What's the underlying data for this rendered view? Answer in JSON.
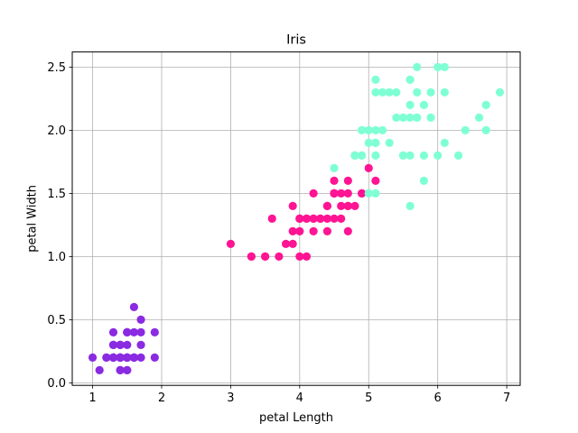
{
  "chart_data": {
    "type": "scatter",
    "title": "Iris",
    "xlabel": "petal Length",
    "ylabel": "petal Width",
    "xlim": [
      0.705,
      7.195
    ],
    "ylim": [
      -0.02,
      2.62
    ],
    "xticks": [
      1,
      2,
      3,
      4,
      5,
      6,
      7
    ],
    "xtick_labels": [
      "1",
      "2",
      "3",
      "4",
      "5",
      "6",
      "7"
    ],
    "yticks": [
      0.0,
      0.5,
      1.0,
      1.5,
      2.0,
      2.5
    ],
    "ytick_labels": [
      "0.0",
      "0.5",
      "1.0",
      "1.5",
      "2.0",
      "2.5"
    ],
    "grid": true,
    "legend": false,
    "series": [
      {
        "color": "#8a2be2",
        "points": [
          [
            1.4,
            0.2
          ],
          [
            1.4,
            0.2
          ],
          [
            1.3,
            0.2
          ],
          [
            1.5,
            0.2
          ],
          [
            1.4,
            0.2
          ],
          [
            1.7,
            0.4
          ],
          [
            1.4,
            0.3
          ],
          [
            1.5,
            0.2
          ],
          [
            1.4,
            0.2
          ],
          [
            1.5,
            0.1
          ],
          [
            1.5,
            0.2
          ],
          [
            1.6,
            0.2
          ],
          [
            1.4,
            0.1
          ],
          [
            1.1,
            0.1
          ],
          [
            1.2,
            0.2
          ],
          [
            1.5,
            0.4
          ],
          [
            1.3,
            0.4
          ],
          [
            1.4,
            0.3
          ],
          [
            1.7,
            0.3
          ],
          [
            1.5,
            0.3
          ],
          [
            1.7,
            0.2
          ],
          [
            1.5,
            0.4
          ],
          [
            1.0,
            0.2
          ],
          [
            1.7,
            0.5
          ],
          [
            1.9,
            0.2
          ],
          [
            1.6,
            0.2
          ],
          [
            1.6,
            0.4
          ],
          [
            1.5,
            0.2
          ],
          [
            1.4,
            0.2
          ],
          [
            1.6,
            0.2
          ],
          [
            1.6,
            0.2
          ],
          [
            1.5,
            0.4
          ],
          [
            1.5,
            0.1
          ],
          [
            1.4,
            0.2
          ],
          [
            1.5,
            0.2
          ],
          [
            1.2,
            0.2
          ],
          [
            1.3,
            0.2
          ],
          [
            1.4,
            0.1
          ],
          [
            1.3,
            0.2
          ],
          [
            1.5,
            0.2
          ],
          [
            1.3,
            0.3
          ],
          [
            1.3,
            0.3
          ],
          [
            1.3,
            0.2
          ],
          [
            1.6,
            0.6
          ],
          [
            1.9,
            0.4
          ],
          [
            1.4,
            0.3
          ],
          [
            1.6,
            0.2
          ],
          [
            1.4,
            0.2
          ],
          [
            1.5,
            0.2
          ],
          [
            1.4,
            0.2
          ]
        ]
      },
      {
        "color": "#ff1493",
        "points": [
          [
            4.7,
            1.4
          ],
          [
            4.5,
            1.5
          ],
          [
            4.9,
            1.5
          ],
          [
            4.0,
            1.3
          ],
          [
            4.6,
            1.5
          ],
          [
            4.5,
            1.3
          ],
          [
            4.7,
            1.6
          ],
          [
            3.3,
            1.0
          ],
          [
            4.6,
            1.3
          ],
          [
            3.9,
            1.4
          ],
          [
            3.5,
            1.0
          ],
          [
            4.2,
            1.5
          ],
          [
            4.0,
            1.0
          ],
          [
            4.7,
            1.4
          ],
          [
            3.6,
            1.3
          ],
          [
            4.4,
            1.4
          ],
          [
            4.5,
            1.5
          ],
          [
            4.1,
            1.0
          ],
          [
            4.5,
            1.5
          ],
          [
            3.9,
            1.1
          ],
          [
            4.8,
            1.8
          ],
          [
            4.0,
            1.3
          ],
          [
            4.9,
            1.5
          ],
          [
            4.7,
            1.2
          ],
          [
            4.3,
            1.3
          ],
          [
            4.4,
            1.4
          ],
          [
            4.8,
            1.4
          ],
          [
            5.0,
            1.7
          ],
          [
            4.5,
            1.5
          ],
          [
            3.5,
            1.0
          ],
          [
            3.8,
            1.1
          ],
          [
            3.7,
            1.0
          ],
          [
            3.9,
            1.2
          ],
          [
            5.1,
            1.6
          ],
          [
            4.5,
            1.5
          ],
          [
            4.5,
            1.6
          ],
          [
            4.7,
            1.5
          ],
          [
            4.4,
            1.3
          ],
          [
            4.1,
            1.3
          ],
          [
            4.0,
            1.3
          ],
          [
            4.4,
            1.2
          ],
          [
            4.6,
            1.4
          ],
          [
            4.0,
            1.2
          ],
          [
            3.3,
            1.0
          ],
          [
            4.2,
            1.3
          ],
          [
            4.2,
            1.2
          ],
          [
            4.2,
            1.3
          ],
          [
            4.3,
            1.3
          ],
          [
            3.0,
            1.1
          ],
          [
            4.1,
            1.3
          ]
        ]
      },
      {
        "color": "#7fffd4",
        "points": [
          [
            6.0,
            2.5
          ],
          [
            5.1,
            1.9
          ],
          [
            5.9,
            2.1
          ],
          [
            5.6,
            1.8
          ],
          [
            5.8,
            2.2
          ],
          [
            6.6,
            2.1
          ],
          [
            4.5,
            1.7
          ],
          [
            6.3,
            1.8
          ],
          [
            5.8,
            1.8
          ],
          [
            6.1,
            2.5
          ],
          [
            5.1,
            2.0
          ],
          [
            5.3,
            1.9
          ],
          [
            5.5,
            2.1
          ],
          [
            5.0,
            2.0
          ],
          [
            5.1,
            2.4
          ],
          [
            5.3,
            2.3
          ],
          [
            5.5,
            1.8
          ],
          [
            6.7,
            2.2
          ],
          [
            6.9,
            2.3
          ],
          [
            5.0,
            1.5
          ],
          [
            5.7,
            2.3
          ],
          [
            4.9,
            2.0
          ],
          [
            6.7,
            2.0
          ],
          [
            4.9,
            1.8
          ],
          [
            5.7,
            2.1
          ],
          [
            6.0,
            1.8
          ],
          [
            4.8,
            1.8
          ],
          [
            4.9,
            1.8
          ],
          [
            5.6,
            2.1
          ],
          [
            5.8,
            1.6
          ],
          [
            6.1,
            1.9
          ],
          [
            6.4,
            2.0
          ],
          [
            5.6,
            2.2
          ],
          [
            5.1,
            1.5
          ],
          [
            5.6,
            1.4
          ],
          [
            6.1,
            2.3
          ],
          [
            5.6,
            2.4
          ],
          [
            5.5,
            1.8
          ],
          [
            4.8,
            1.8
          ],
          [
            5.4,
            2.1
          ],
          [
            5.6,
            2.4
          ],
          [
            5.1,
            2.3
          ],
          [
            5.1,
            1.9
          ],
          [
            5.9,
            2.3
          ],
          [
            5.7,
            2.5
          ],
          [
            5.2,
            2.3
          ],
          [
            5.0,
            1.9
          ],
          [
            5.2,
            2.0
          ],
          [
            5.4,
            2.3
          ],
          [
            5.1,
            1.8
          ]
        ]
      }
    ]
  }
}
